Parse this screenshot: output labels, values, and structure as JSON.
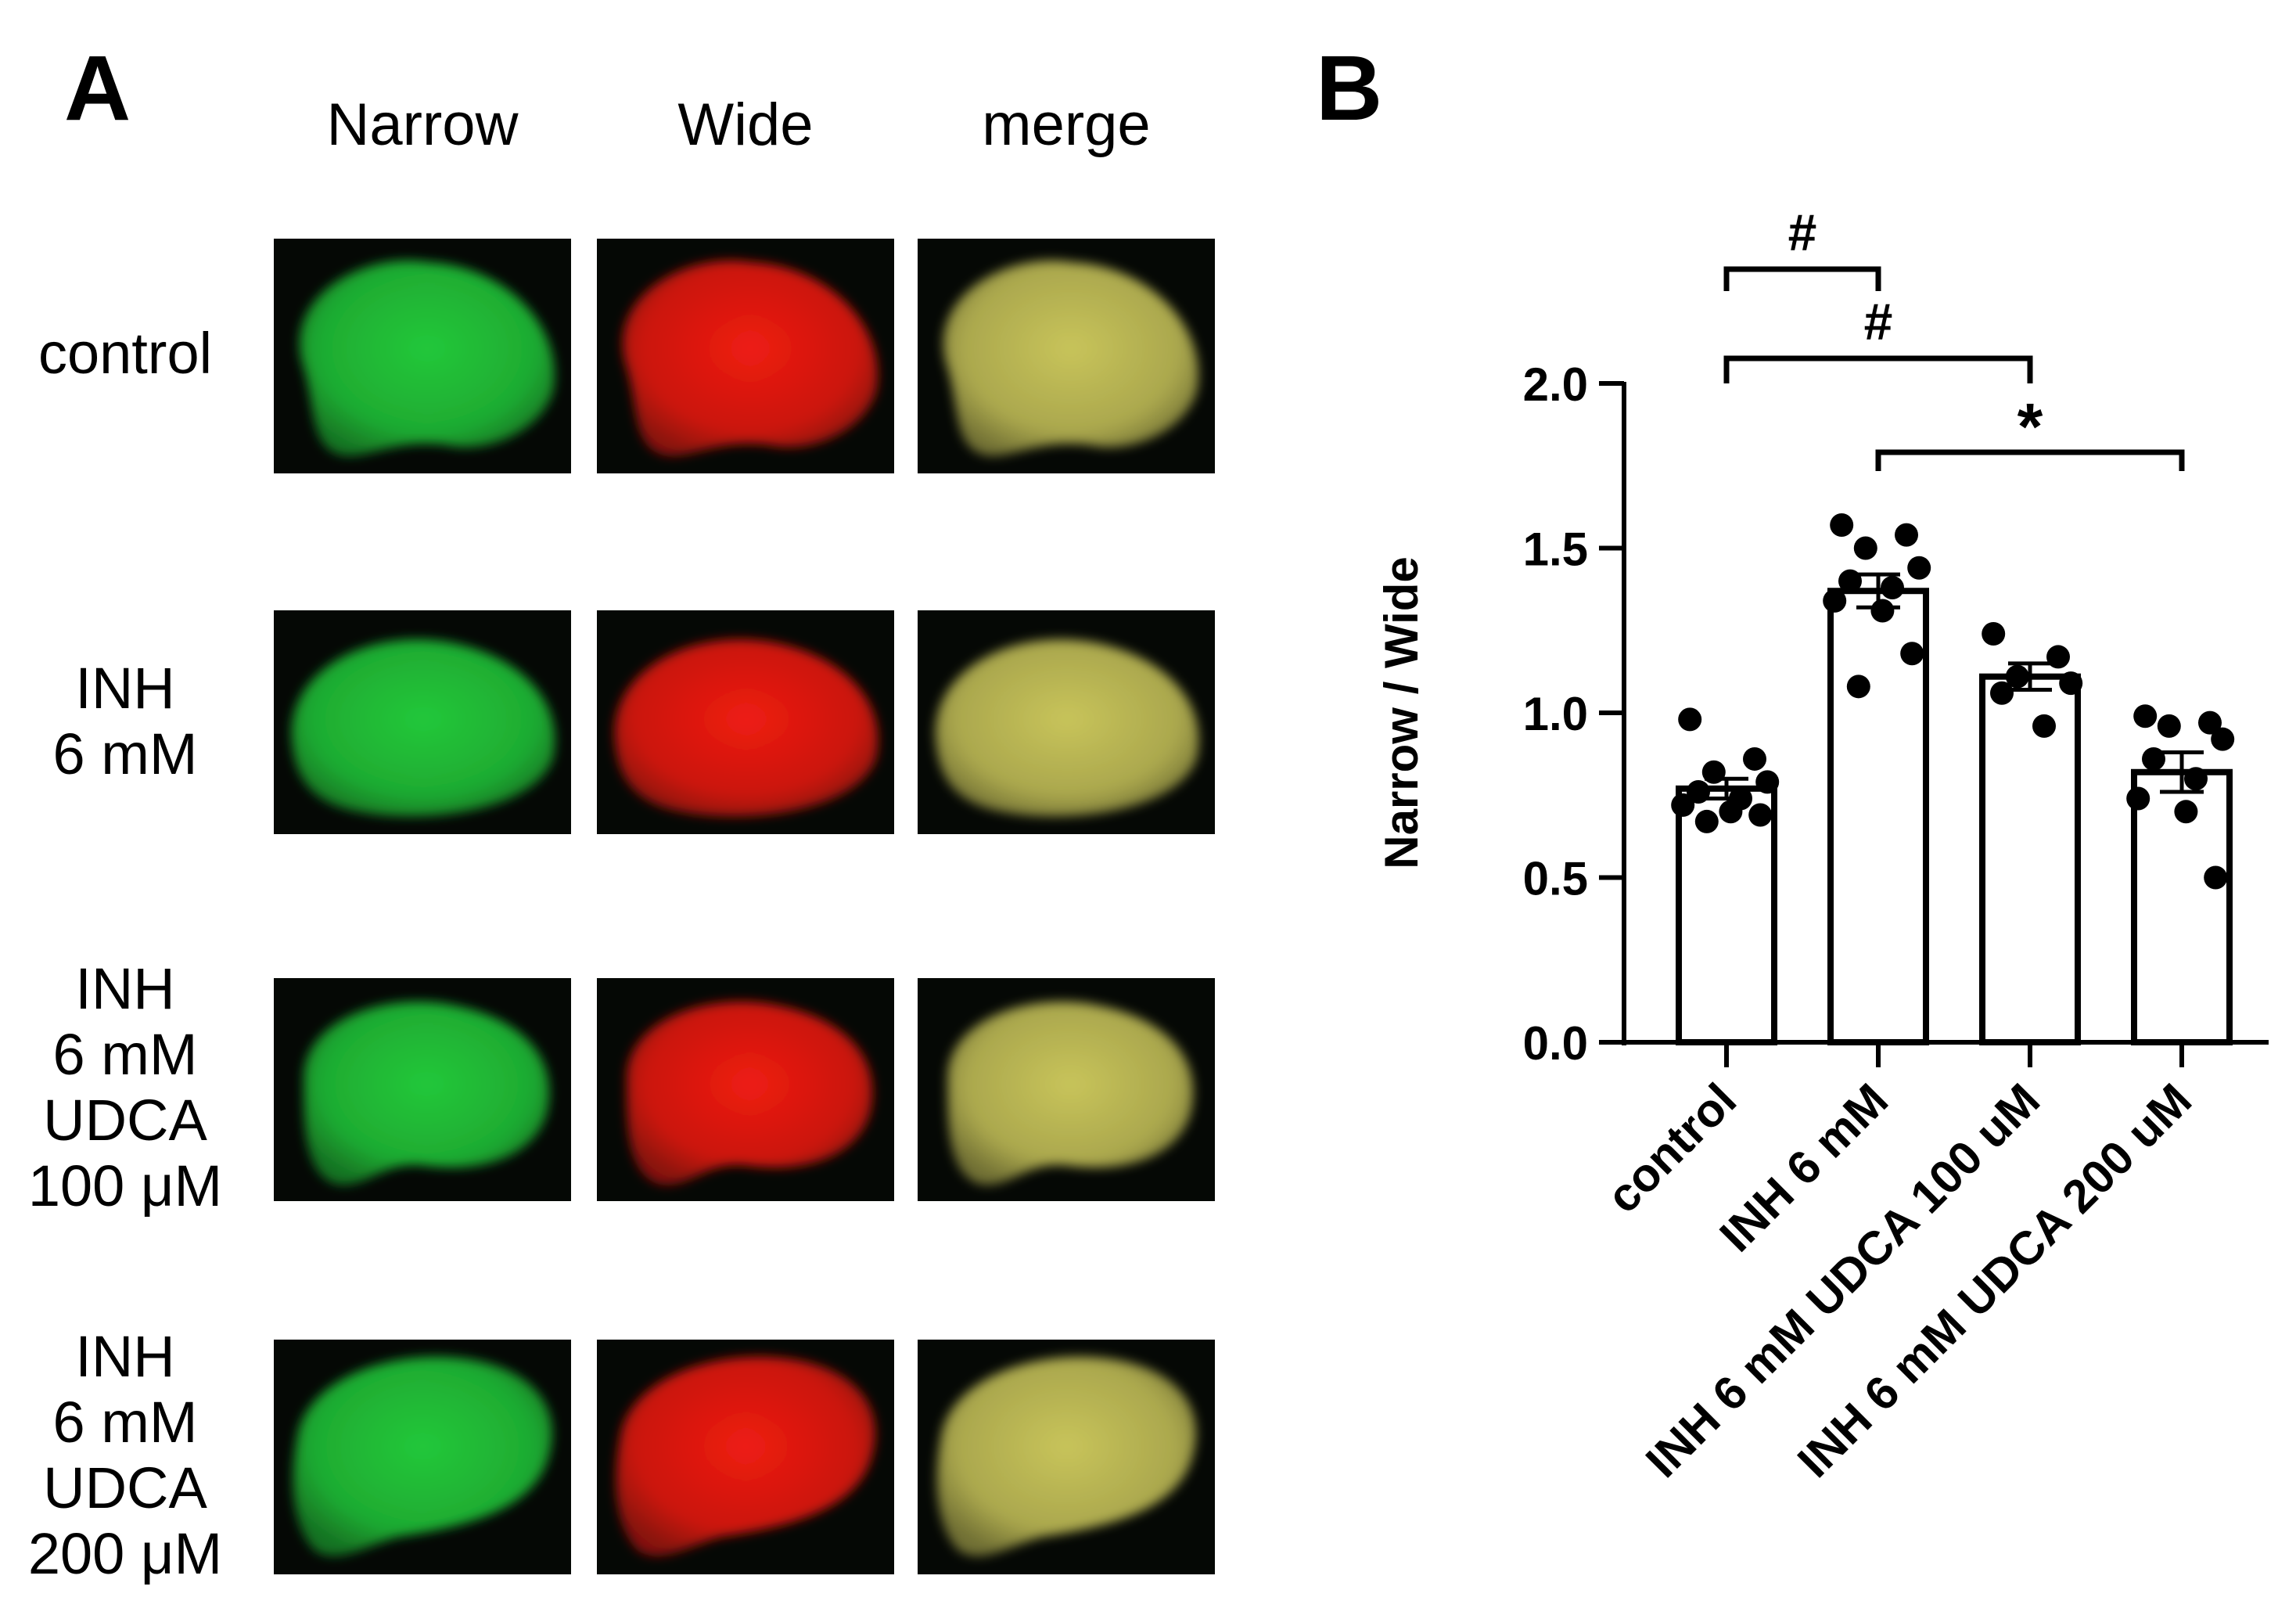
{
  "panel_a": {
    "letter": "A",
    "columns": [
      "Narrow",
      "Wide",
      "merge"
    ],
    "rows": [
      {
        "lines": [
          "control"
        ]
      },
      {
        "lines": [
          "INH",
          "6 mM"
        ]
      },
      {
        "lines": [
          "INH",
          "6 mM",
          "UDCA",
          "100 μM"
        ]
      },
      {
        "lines": [
          "INH",
          "6 mM",
          "UDCA",
          "200 μM"
        ]
      }
    ],
    "channel_colors": {
      "Narrow": "#22c83a",
      "Wide": "#ee1a12",
      "merge": "#c8c45a"
    }
  },
  "panel_b": {
    "letter": "B"
  },
  "chart_data": {
    "type": "bar",
    "categories": [
      "control",
      "INH 6 mM",
      "INH 6 mM UDCA 100 uM",
      "INH 6 mM UDCA 200 uM"
    ],
    "values": [
      0.77,
      1.37,
      1.11,
      0.82
    ],
    "sem": [
      0.03,
      0.05,
      0.04,
      0.06
    ],
    "points": [
      [
        0.98,
        0.86,
        0.82,
        0.79,
        0.76,
        0.74,
        0.72,
        0.7,
        0.69,
        0.67
      ],
      [
        1.57,
        1.54,
        1.5,
        1.44,
        1.4,
        1.38,
        1.34,
        1.31,
        1.18,
        1.08
      ],
      [
        1.24,
        1.17,
        1.11,
        1.09,
        1.06,
        0.96
      ],
      [
        0.99,
        0.97,
        0.96,
        0.92,
        0.86,
        0.8,
        0.74,
        0.7,
        0.5
      ]
    ],
    "xlabel": "",
    "ylabel": "Narrow / Wide",
    "ylim": [
      0.0,
      2.0
    ],
    "yticks": [
      "0.0",
      "0.5",
      "1.0",
      "1.5",
      "2.0"
    ],
    "grid": false,
    "significance": [
      {
        "from": "control",
        "to": "INH 6 mM",
        "label": "#"
      },
      {
        "from": "control",
        "to": "INH 6 mM UDCA 100 uM",
        "label": "#"
      },
      {
        "from": "INH 6 mM",
        "to": "INH 6 mM UDCA 200 uM",
        "label": "*"
      }
    ],
    "bar_fill": "#ffffff",
    "point_color": "#000000"
  }
}
